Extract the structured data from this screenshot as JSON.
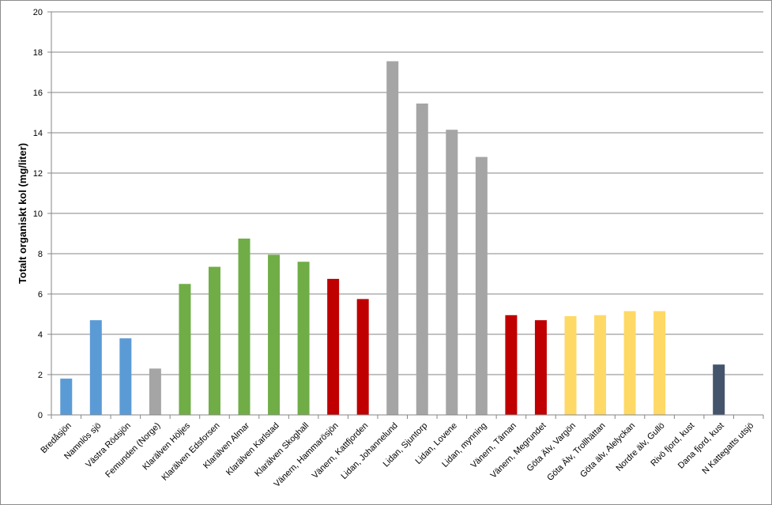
{
  "chart_data": {
    "type": "bar",
    "title": "",
    "xlabel": "",
    "ylabel": "Totalt organiskt kol (mg/liter)",
    "ylim": [
      0,
      20
    ],
    "yticks": [
      0,
      2,
      4,
      6,
      8,
      10,
      12,
      14,
      16,
      18,
      20
    ],
    "grid": true,
    "legend": "none",
    "categories": [
      "Bredåsjön",
      "Namnlös sjö",
      "Västra Rödsjön",
      "Femunden (Norge)",
      "Klarälven Höljes",
      "Klarälven Edsforsen",
      "Klarälven Almar",
      "Klarälven Karlstad",
      "Klarälven Skoghall",
      "Vänern, Hammarösjön",
      "Vänern, Kattfjorden",
      "Lidan, Johannelund",
      "Lidan, Sjuntorp",
      "Lidan, Lovene",
      "Lidan, mynning",
      "Vänern, Tärnan",
      "Vänern, Megrundet",
      "Göta Älv, Vargön",
      "Göta Älv, Trollhättan",
      "Göta älv, Alelyckan",
      "Nordre älv, Gullö",
      "Rivö fjord, kust",
      "Dana fjord, kust",
      "N Kattegatts utsjö"
    ],
    "values": [
      1.8,
      4.7,
      3.8,
      2.3,
      6.5,
      7.35,
      8.75,
      7.95,
      7.6,
      6.75,
      5.75,
      17.55,
      15.45,
      14.15,
      12.8,
      4.95,
      4.7,
      4.9,
      4.95,
      5.15,
      5.15,
      0,
      2.5,
      0
    ],
    "colors": [
      "#5b9bd5",
      "#5b9bd5",
      "#5b9bd5",
      "#a5a5a5",
      "#70ad47",
      "#70ad47",
      "#70ad47",
      "#70ad47",
      "#70ad47",
      "#c00000",
      "#c00000",
      "#a5a5a5",
      "#a5a5a5",
      "#a5a5a5",
      "#a5a5a5",
      "#c00000",
      "#c00000",
      "#ffd966",
      "#ffd966",
      "#ffd966",
      "#ffd966",
      "#44546a",
      "#44546a",
      "#44546a"
    ]
  }
}
